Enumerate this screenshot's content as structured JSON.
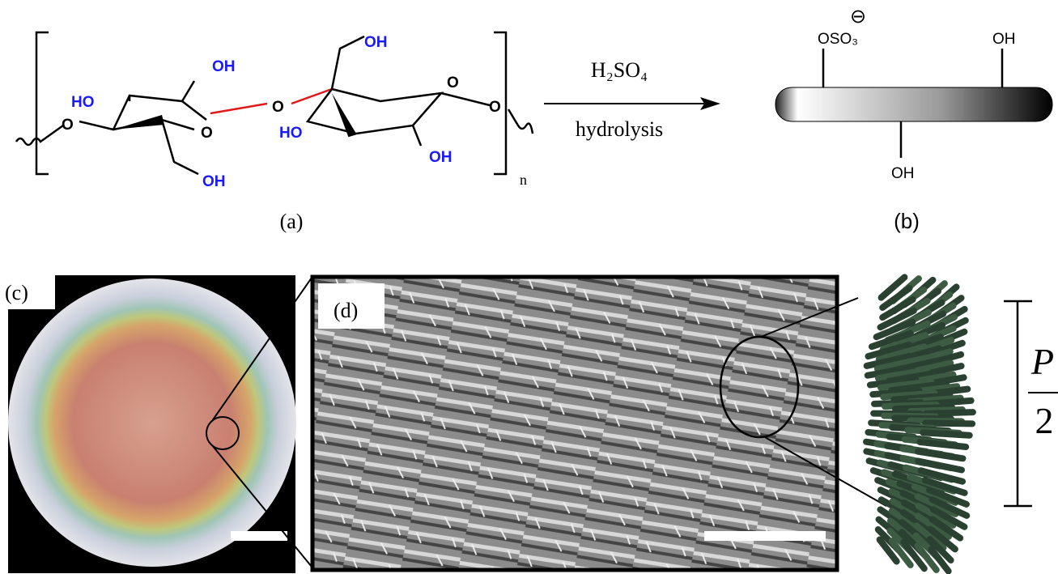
{
  "panel_a": {
    "label": "(a)",
    "hydroxyls": [
      "HO",
      "OH",
      "OH",
      "OH",
      "HO",
      "OH"
    ],
    "ring_oxygens": [
      "O",
      "O"
    ],
    "bridge_oxygen": "O",
    "linkage_oxygens": [
      "O",
      "O"
    ],
    "repeat": "n"
  },
  "reaction": {
    "reagent": "H₂SO₄",
    "condition": "hydrolysis"
  },
  "panel_b": {
    "label": "(b)",
    "sulfate": "OSO₃",
    "charge": "⊖",
    "hydroxyls": [
      "OH",
      "OH"
    ]
  },
  "panel_c": {
    "label": "(c)"
  },
  "panel_d": {
    "label": "(d)"
  },
  "panel_e": {
    "pitch_numerator": "P",
    "pitch_denominator": "2"
  }
}
